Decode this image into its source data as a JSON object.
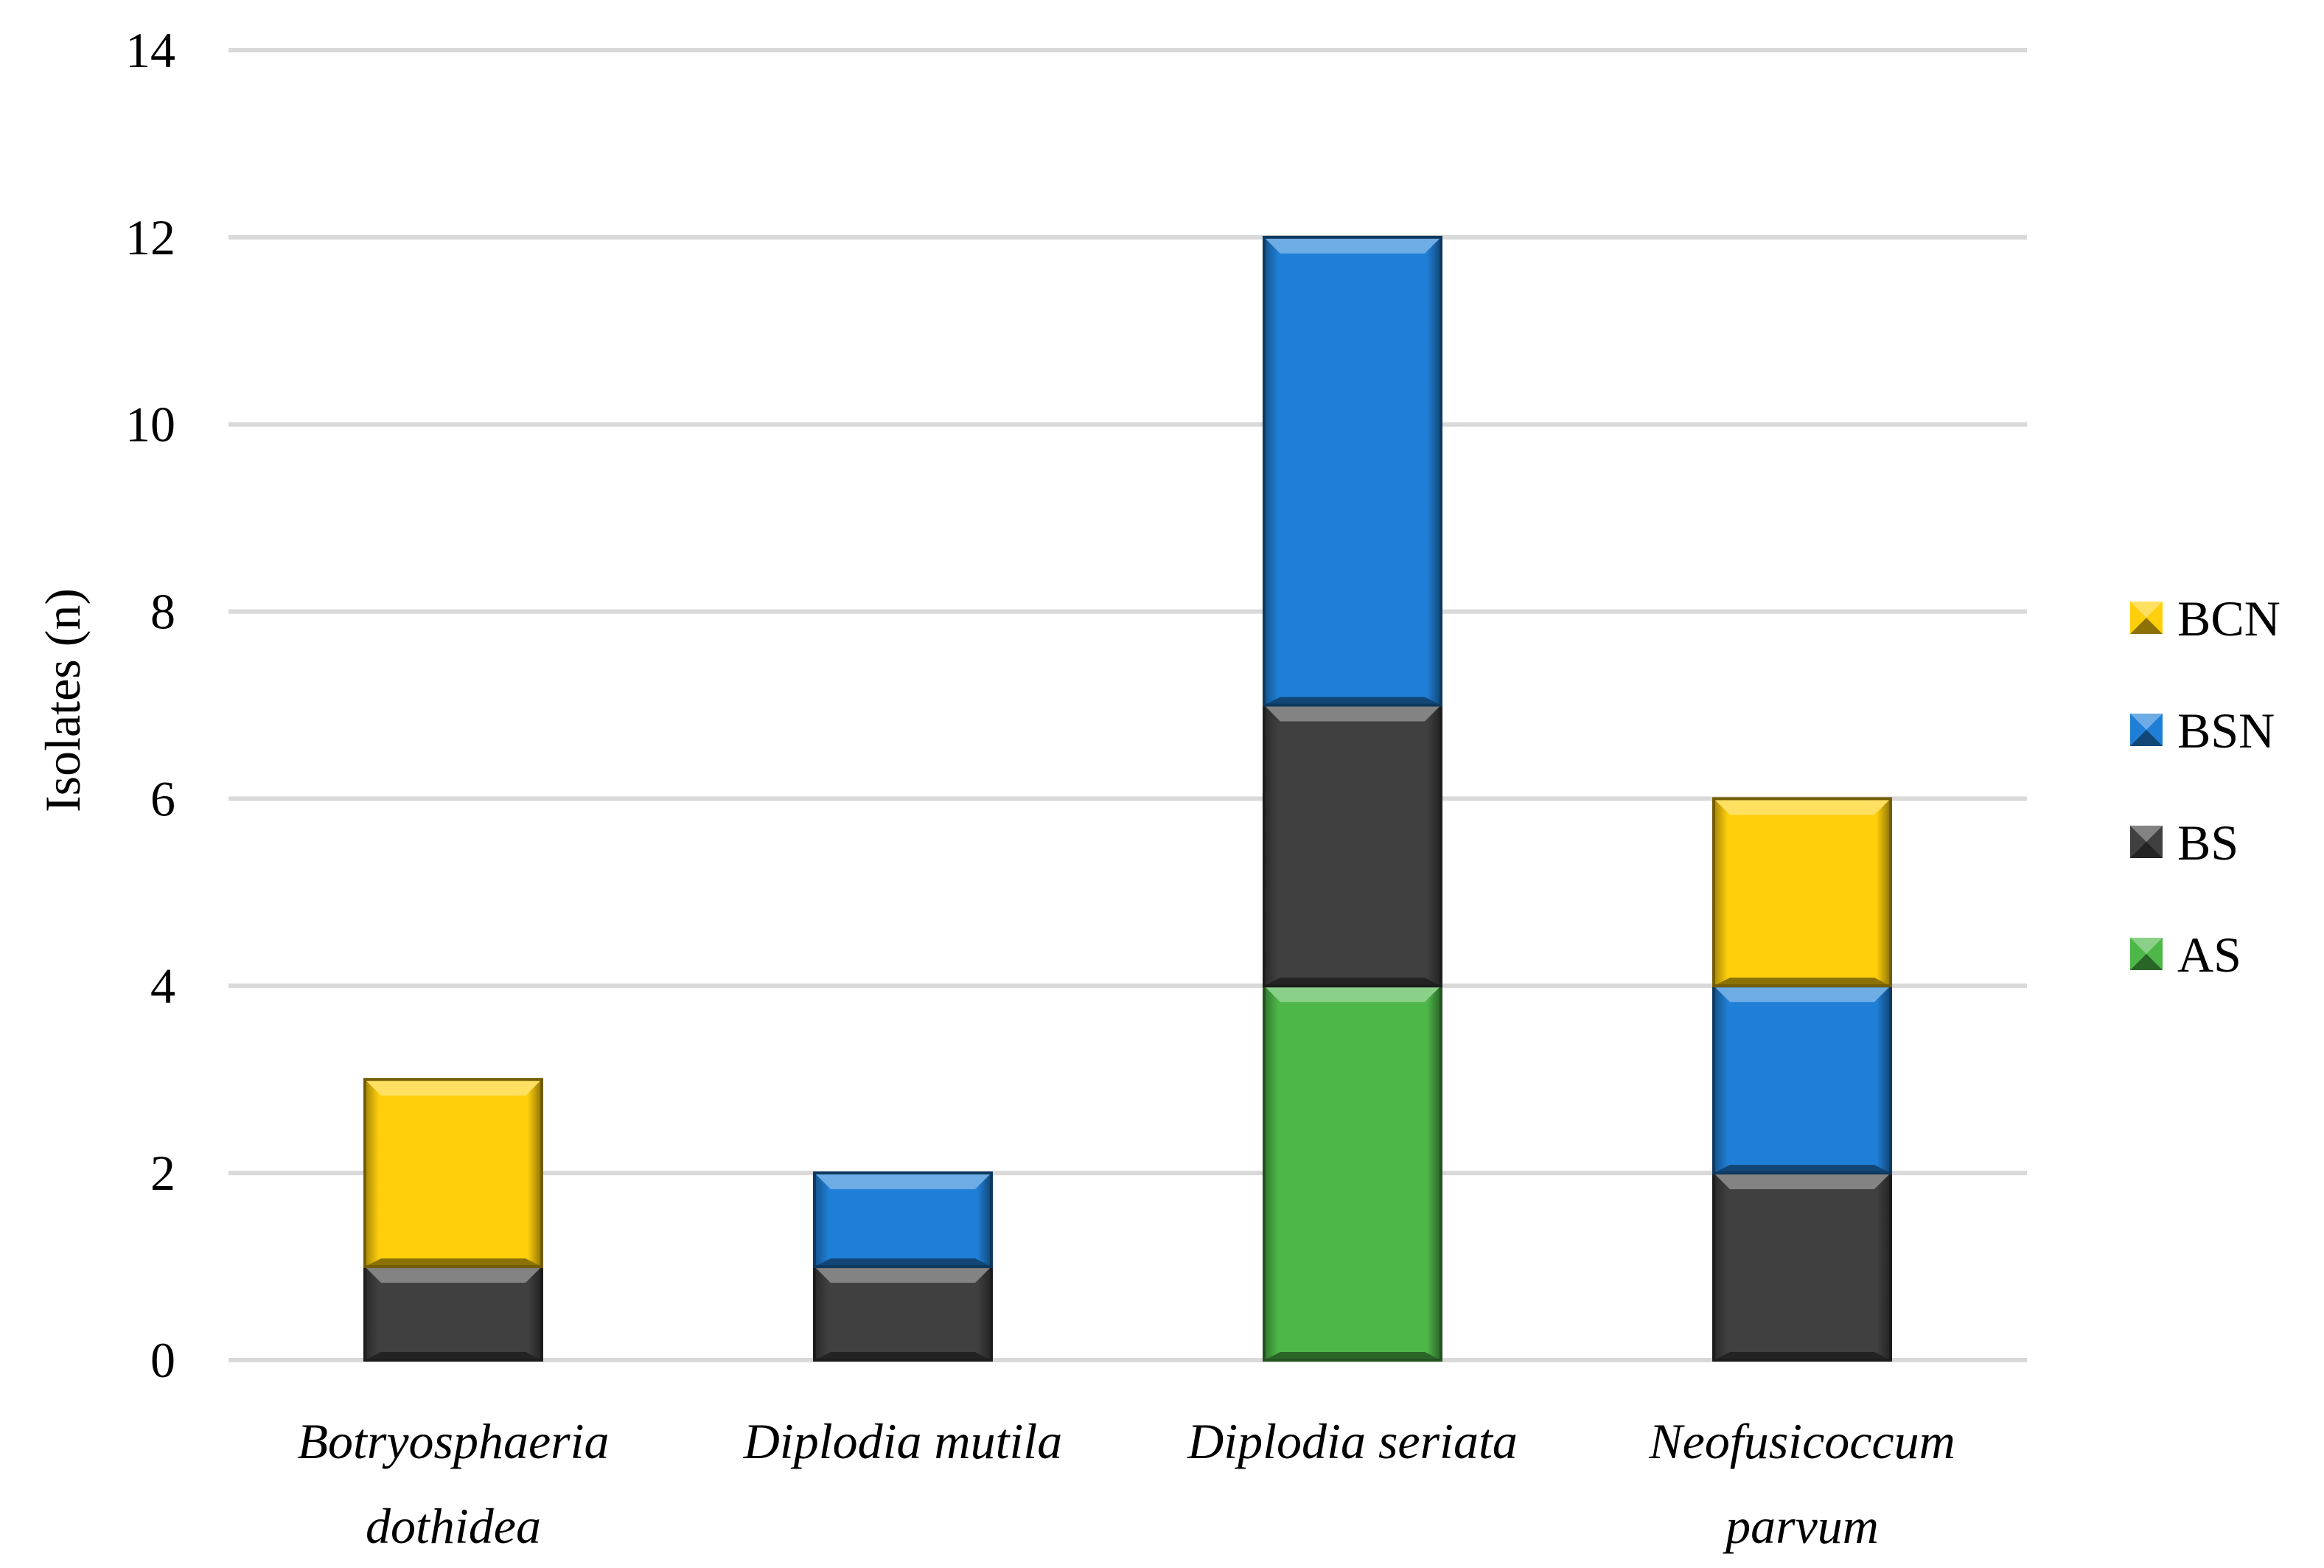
{
  "chart_data": {
    "type": "bar",
    "stacked": true,
    "categories": [
      [
        "Botryosphaeria",
        "dothidea"
      ],
      [
        "Diplodia mutila"
      ],
      [
        "Diplodia seriata"
      ],
      [
        "Neofusicoccum",
        "parvum"
      ]
    ],
    "series": [
      {
        "name": "AS",
        "color": "#4db748",
        "values": [
          0,
          0,
          4,
          0
        ]
      },
      {
        "name": "BS",
        "color": "#404040",
        "values": [
          1,
          1,
          3,
          2
        ]
      },
      {
        "name": "BSN",
        "color": "#1f7fd6",
        "values": [
          0,
          1,
          5,
          2
        ]
      },
      {
        "name": "BCN",
        "color": "#ffcf0b",
        "values": [
          2,
          0,
          0,
          2
        ]
      }
    ],
    "legend_order": [
      "BCN",
      "BSN",
      "BS",
      "AS"
    ],
    "legend_position": "right",
    "ylabel": "Isolates (n)",
    "xlabel": "",
    "title": "",
    "ylim": [
      0,
      14
    ],
    "yticks": [
      0,
      2,
      4,
      6,
      8,
      10,
      12,
      14
    ],
    "grid": true
  }
}
